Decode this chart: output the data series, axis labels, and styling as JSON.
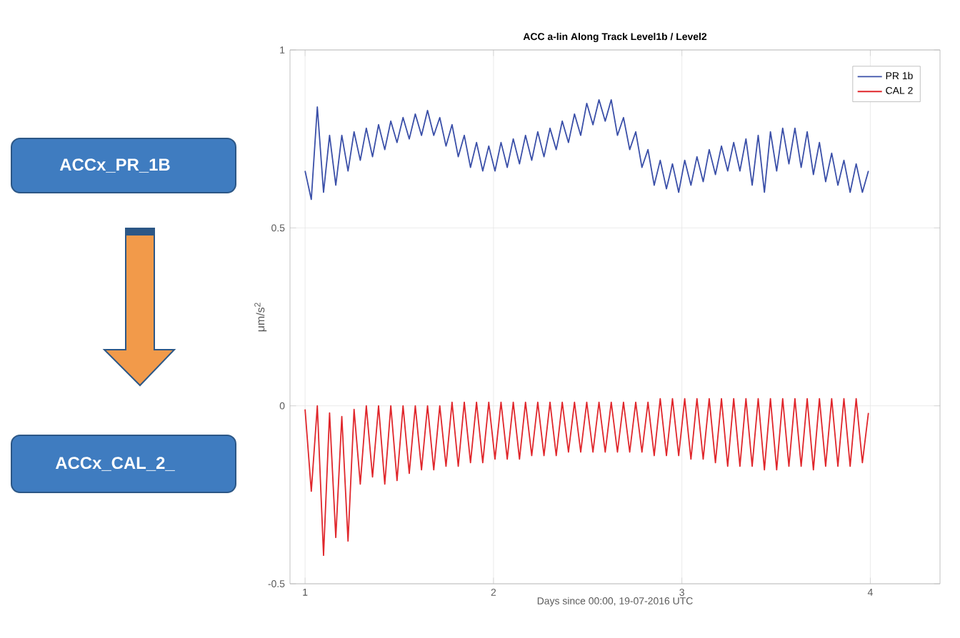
{
  "chart_data": {
    "type": "line",
    "title": "ACC a-lin Along Track Level1b / Level2",
    "xlabel": "Days since 00:00, 19-07-2016 UTC",
    "ylabel": "μm/s$^{2}$",
    "annotations": [
      "ACCx_PR_1B",
      "ACCx_CAL_2_"
    ],
    "x": [
      1.0,
      1.033,
      1.065,
      1.098,
      1.13,
      1.163,
      1.195,
      1.228,
      1.26,
      1.293,
      1.325,
      1.358,
      1.39,
      1.423,
      1.455,
      1.488,
      1.52,
      1.553,
      1.585,
      1.618,
      1.65,
      1.683,
      1.715,
      1.748,
      1.78,
      1.813,
      1.845,
      1.878,
      1.91,
      1.943,
      1.975,
      2.008,
      2.04,
      2.073,
      2.105,
      2.138,
      2.17,
      2.203,
      2.235,
      2.268,
      2.3,
      2.333,
      2.365,
      2.398,
      2.43,
      2.463,
      2.495,
      2.528,
      2.56,
      2.593,
      2.625,
      2.658,
      2.69,
      2.723,
      2.755,
      2.788,
      2.82,
      2.853,
      2.885,
      2.918,
      2.95,
      2.983,
      3.015,
      3.048,
      3.08,
      3.113,
      3.145,
      3.178,
      3.21,
      3.243,
      3.275,
      3.308,
      3.34,
      3.373,
      3.405,
      3.438,
      3.47,
      3.503,
      3.535,
      3.568,
      3.6,
      3.633,
      3.665,
      3.698,
      3.73,
      3.763,
      3.795,
      3.828,
      3.86,
      3.893,
      3.925,
      3.958,
      3.99
    ],
    "series": [
      {
        "name": "PR 1b",
        "color": "#3a4fa8",
        "values": [
          0.66,
          0.58,
          0.84,
          0.6,
          0.76,
          0.62,
          0.76,
          0.66,
          0.77,
          0.69,
          0.78,
          0.7,
          0.79,
          0.72,
          0.8,
          0.74,
          0.81,
          0.75,
          0.82,
          0.76,
          0.83,
          0.76,
          0.81,
          0.73,
          0.79,
          0.7,
          0.76,
          0.67,
          0.74,
          0.66,
          0.73,
          0.66,
          0.74,
          0.67,
          0.75,
          0.68,
          0.76,
          0.69,
          0.77,
          0.7,
          0.78,
          0.72,
          0.8,
          0.74,
          0.82,
          0.76,
          0.85,
          0.79,
          0.86,
          0.8,
          0.86,
          0.76,
          0.81,
          0.72,
          0.77,
          0.67,
          0.72,
          0.62,
          0.69,
          0.61,
          0.68,
          0.6,
          0.69,
          0.62,
          0.7,
          0.63,
          0.72,
          0.65,
          0.73,
          0.66,
          0.74,
          0.66,
          0.75,
          0.62,
          0.76,
          0.6,
          0.77,
          0.66,
          0.78,
          0.68,
          0.78,
          0.67,
          0.77,
          0.65,
          0.74,
          0.63,
          0.71,
          0.62,
          0.69,
          0.6,
          0.68,
          0.6,
          0.66
        ]
      },
      {
        "name": "CAL 2",
        "color": "#e0262b",
        "values": [
          -0.01,
          -0.24,
          0.0,
          -0.42,
          -0.02,
          -0.37,
          -0.03,
          -0.38,
          -0.01,
          -0.22,
          0.0,
          -0.2,
          0.0,
          -0.22,
          0.0,
          -0.21,
          0.0,
          -0.19,
          0.0,
          -0.18,
          0.0,
          -0.18,
          0.0,
          -0.17,
          0.01,
          -0.17,
          0.01,
          -0.16,
          0.01,
          -0.16,
          0.01,
          -0.15,
          0.01,
          -0.15,
          0.01,
          -0.15,
          0.01,
          -0.14,
          0.01,
          -0.14,
          0.01,
          -0.14,
          0.01,
          -0.13,
          0.01,
          -0.13,
          0.01,
          -0.13,
          0.01,
          -0.13,
          0.01,
          -0.13,
          0.01,
          -0.13,
          0.01,
          -0.13,
          0.01,
          -0.14,
          0.02,
          -0.14,
          0.02,
          -0.14,
          0.02,
          -0.15,
          0.02,
          -0.15,
          0.02,
          -0.16,
          0.02,
          -0.17,
          0.02,
          -0.17,
          0.02,
          -0.17,
          0.02,
          -0.18,
          0.02,
          -0.18,
          0.02,
          -0.17,
          0.02,
          -0.17,
          0.02,
          -0.18,
          0.02,
          -0.17,
          0.02,
          -0.17,
          0.02,
          -0.17,
          0.02,
          -0.16,
          -0.02
        ]
      }
    ],
    "xlim": [
      0.92,
      4.37
    ],
    "ylim": [
      -0.5,
      1
    ],
    "xticks": [
      1,
      2,
      3,
      4
    ],
    "yticks": [
      -0.5,
      0,
      0.5,
      1
    ],
    "grid": true,
    "legend": "top right",
    "line_style": "solid"
  }
}
